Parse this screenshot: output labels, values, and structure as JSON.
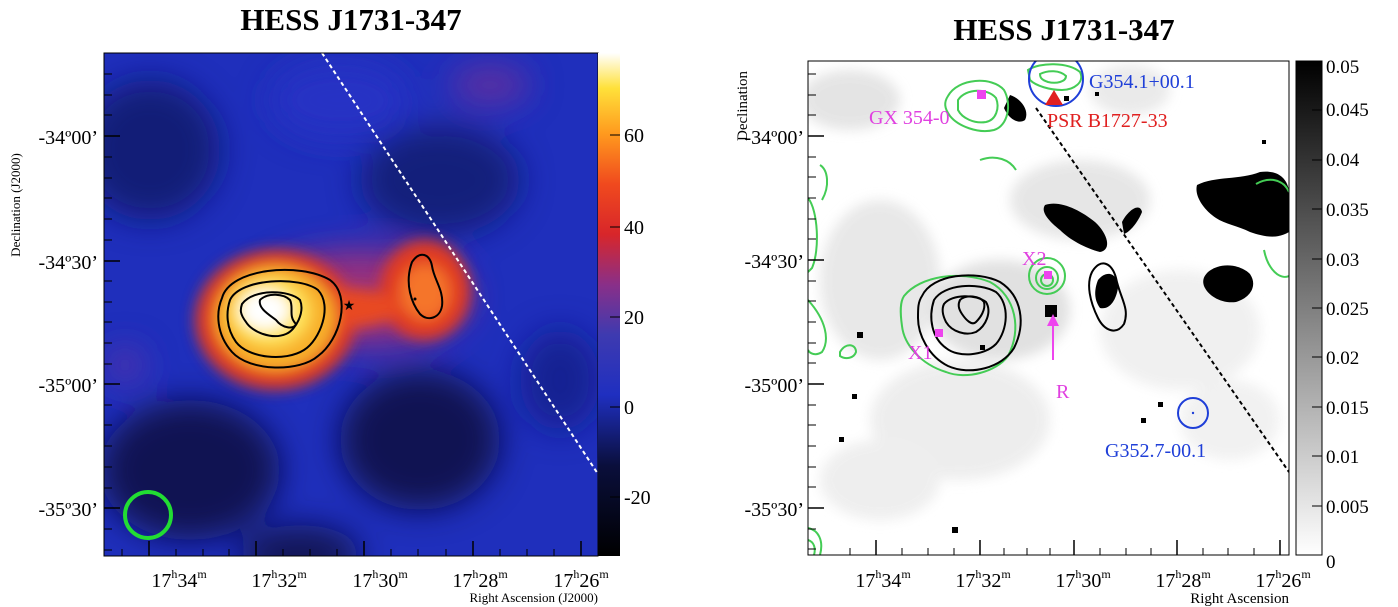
{
  "chart_data": [
    {
      "type": "heatmap",
      "title": "HESS J1731-347",
      "xlabel": "Right Ascension (J2000)",
      "ylabel": "Declination (J2000)",
      "x_ticks": [
        {
          "h": "17",
          "m": "34"
        },
        {
          "h": "17",
          "m": "32"
        },
        {
          "h": "17",
          "m": "30"
        },
        {
          "h": "17",
          "m": "28"
        },
        {
          "h": "17",
          "m": "26"
        }
      ],
      "y_ticks": [
        "-34º00’",
        "-34º30’",
        "-35º00’",
        "-35º30’"
      ],
      "colorbar": {
        "range": [
          -30,
          80
        ],
        "ticks": [
          "60",
          "40",
          "20",
          "0",
          "-20"
        ],
        "colormap": [
          "#000000",
          "#0a0f3c",
          "#1f2fc0",
          "#3e3ab0",
          "#8a2f88",
          "#d8262a",
          "#f04a1e",
          "#ff9a1e",
          "#ffe13a",
          "#ffffff"
        ]
      },
      "markers": {
        "psf_circle_color": "#22dd33",
        "line_color": "#ffffff"
      }
    },
    {
      "type": "heatmap",
      "title": "HESS J1731-347",
      "xlabel": "Right Ascension",
      "ylabel": "Declination",
      "x_ticks": [
        {
          "h": "17",
          "m": "34"
        },
        {
          "h": "17",
          "m": "32"
        },
        {
          "h": "17",
          "m": "30"
        },
        {
          "h": "17",
          "m": "28"
        },
        {
          "h": "17",
          "m": "26"
        }
      ],
      "y_ticks": [
        "-34º00’",
        "-34º30’",
        "-35º00’",
        "-35º30’"
      ],
      "colorbar": {
        "range": [
          0,
          0.05
        ],
        "ticks": [
          "0.05",
          "0.045",
          "0.04",
          "0.035",
          "0.03",
          "0.025",
          "0.02",
          "0.015",
          "0.01",
          "0.005",
          "0"
        ]
      },
      "annotations": [
        {
          "text": "G354.1+00.1",
          "color": "#1f3fd8"
        },
        {
          "text": "GX 354-0",
          "color": "#e040e0"
        },
        {
          "text": "PSR B1727-33",
          "color": "#e02020"
        },
        {
          "text": "X2",
          "color": "#e040e0"
        },
        {
          "text": "X1",
          "color": "#e040e0"
        },
        {
          "text": "R",
          "color": "#e040e0"
        },
        {
          "text": "G352.7-00.1",
          "color": "#1f3fd8"
        }
      ],
      "colors": {
        "contour_green": "#44cc55",
        "contour_black": "#000000",
        "magenta": "#ee44ee"
      }
    }
  ]
}
